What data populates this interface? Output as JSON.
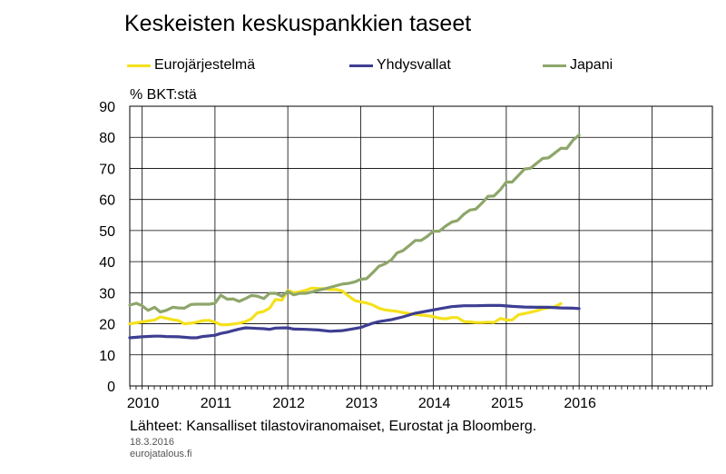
{
  "chart_data": {
    "type": "line",
    "title": "Keskeisten keskuspankkien taseet",
    "ylabel": "% BKT:stä",
    "xlabel": "",
    "ylim": [
      0,
      90
    ],
    "yticks": [
      0,
      10,
      20,
      30,
      40,
      50,
      60,
      70,
      80,
      90
    ],
    "xlim": [
      2009.83,
      2017.83
    ],
    "xticks": [
      {
        "label": "2010",
        "x": 2010.0
      },
      {
        "label": "2011",
        "x": 2011.0
      },
      {
        "label": "2012",
        "x": 2012.0
      },
      {
        "label": "2013",
        "x": 2013.0
      },
      {
        "label": "2014",
        "x": 2014.0
      },
      {
        "label": "2015",
        "x": 2015.0
      },
      {
        "label": "2016",
        "x": 2016.0
      }
    ],
    "grid": true,
    "legend_position": "top",
    "series": [
      {
        "name": "Eurojärjestelmä",
        "color": "#f5e11b",
        "points": [
          [
            2009.83,
            20.0
          ],
          [
            2009.92,
            20.3
          ],
          [
            2010.0,
            20.6
          ],
          [
            2010.08,
            20.9
          ],
          [
            2010.17,
            21.2
          ],
          [
            2010.25,
            22.2
          ],
          [
            2010.33,
            21.8
          ],
          [
            2010.42,
            21.3
          ],
          [
            2010.5,
            21.0
          ],
          [
            2010.58,
            20.0
          ],
          [
            2010.67,
            20.2
          ],
          [
            2010.75,
            20.5
          ],
          [
            2010.83,
            21.0
          ],
          [
            2010.92,
            21.1
          ],
          [
            2011.0,
            20.5
          ],
          [
            2011.08,
            19.7
          ],
          [
            2011.17,
            19.7
          ],
          [
            2011.25,
            19.9
          ],
          [
            2011.33,
            20.2
          ],
          [
            2011.42,
            20.7
          ],
          [
            2011.5,
            21.6
          ],
          [
            2011.58,
            23.5
          ],
          [
            2011.67,
            24.0
          ],
          [
            2011.75,
            25.0
          ],
          [
            2011.83,
            27.8
          ],
          [
            2011.92,
            27.6
          ],
          [
            2012.0,
            30.7
          ],
          [
            2012.08,
            30.0
          ],
          [
            2012.17,
            30.3
          ],
          [
            2012.25,
            30.8
          ],
          [
            2012.33,
            31.5
          ],
          [
            2012.42,
            31.3
          ],
          [
            2012.5,
            31.3
          ],
          [
            2012.58,
            31.0
          ],
          [
            2012.67,
            31.0
          ],
          [
            2012.75,
            30.5
          ],
          [
            2012.83,
            29.0
          ],
          [
            2012.92,
            27.5
          ],
          [
            2013.0,
            27.0
          ],
          [
            2013.08,
            26.7
          ],
          [
            2013.17,
            26.0
          ],
          [
            2013.25,
            25.0
          ],
          [
            2013.33,
            24.5
          ],
          [
            2013.42,
            24.2
          ],
          [
            2013.5,
            24.0
          ],
          [
            2013.58,
            23.6
          ],
          [
            2013.67,
            23.3
          ],
          [
            2013.75,
            23.0
          ],
          [
            2013.83,
            22.8
          ],
          [
            2013.92,
            22.6
          ],
          [
            2014.0,
            22.3
          ],
          [
            2014.08,
            21.8
          ],
          [
            2014.17,
            21.6
          ],
          [
            2014.25,
            22.0
          ],
          [
            2014.33,
            22.0
          ],
          [
            2014.42,
            20.7
          ],
          [
            2014.5,
            20.6
          ],
          [
            2014.58,
            20.4
          ],
          [
            2014.67,
            20.4
          ],
          [
            2014.75,
            20.5
          ],
          [
            2014.83,
            20.4
          ],
          [
            2014.92,
            21.7
          ],
          [
            2015.0,
            21.2
          ],
          [
            2015.08,
            21.2
          ],
          [
            2015.17,
            22.9
          ],
          [
            2015.25,
            23.3
          ],
          [
            2015.33,
            23.7
          ],
          [
            2015.42,
            24.2
          ],
          [
            2015.5,
            24.8
          ],
          [
            2015.58,
            25.1
          ],
          [
            2015.67,
            25.5
          ],
          [
            2015.75,
            26.5
          ]
        ]
      },
      {
        "name": "Yhdysvallat",
        "color": "#3e3e92",
        "points": [
          [
            2009.83,
            15.5
          ],
          [
            2010.0,
            15.8
          ],
          [
            2010.17,
            16.0
          ],
          [
            2010.25,
            16.0
          ],
          [
            2010.33,
            15.9
          ],
          [
            2010.5,
            15.8
          ],
          [
            2010.67,
            15.5
          ],
          [
            2010.75,
            15.5
          ],
          [
            2010.83,
            15.9
          ],
          [
            2011.0,
            16.3
          ],
          [
            2011.08,
            16.9
          ],
          [
            2011.17,
            17.3
          ],
          [
            2011.25,
            17.8
          ],
          [
            2011.33,
            18.3
          ],
          [
            2011.42,
            18.7
          ],
          [
            2011.5,
            18.6
          ],
          [
            2011.58,
            18.5
          ],
          [
            2011.67,
            18.4
          ],
          [
            2011.75,
            18.2
          ],
          [
            2011.83,
            18.6
          ],
          [
            2012.0,
            18.7
          ],
          [
            2012.08,
            18.3
          ],
          [
            2012.25,
            18.2
          ],
          [
            2012.42,
            18.0
          ],
          [
            2012.58,
            17.6
          ],
          [
            2012.75,
            17.8
          ],
          [
            2012.83,
            18.1
          ],
          [
            2013.0,
            18.8
          ],
          [
            2013.08,
            19.5
          ],
          [
            2013.17,
            20.2
          ],
          [
            2013.25,
            20.7
          ],
          [
            2013.42,
            21.3
          ],
          [
            2013.58,
            22.2
          ],
          [
            2013.75,
            23.4
          ],
          [
            2013.92,
            24.1
          ],
          [
            2014.08,
            24.8
          ],
          [
            2014.25,
            25.5
          ],
          [
            2014.42,
            25.8
          ],
          [
            2014.58,
            25.8
          ],
          [
            2014.75,
            25.9
          ],
          [
            2014.92,
            25.9
          ],
          [
            2015.08,
            25.6
          ],
          [
            2015.25,
            25.4
          ],
          [
            2015.42,
            25.3
          ],
          [
            2015.58,
            25.3
          ],
          [
            2015.75,
            25.1
          ],
          [
            2015.92,
            25.0
          ],
          [
            2016.0,
            24.9
          ]
        ]
      },
      {
        "name": "Japani",
        "color": "#8ea66a",
        "points": [
          [
            2009.83,
            26.0
          ],
          [
            2009.92,
            26.6
          ],
          [
            2010.0,
            25.8
          ],
          [
            2010.08,
            24.3
          ],
          [
            2010.17,
            25.3
          ],
          [
            2010.25,
            23.8
          ],
          [
            2010.33,
            24.3
          ],
          [
            2010.42,
            25.3
          ],
          [
            2010.5,
            25.1
          ],
          [
            2010.58,
            25.0
          ],
          [
            2010.67,
            26.2
          ],
          [
            2010.75,
            26.3
          ],
          [
            2010.83,
            26.3
          ],
          [
            2010.92,
            26.3
          ],
          [
            2011.0,
            26.6
          ],
          [
            2011.08,
            29.2
          ],
          [
            2011.17,
            27.9
          ],
          [
            2011.25,
            28.0
          ],
          [
            2011.33,
            27.2
          ],
          [
            2011.42,
            28.1
          ],
          [
            2011.5,
            29.1
          ],
          [
            2011.58,
            28.9
          ],
          [
            2011.67,
            28.1
          ],
          [
            2011.75,
            29.8
          ],
          [
            2011.83,
            29.8
          ],
          [
            2011.92,
            28.9
          ],
          [
            2012.0,
            30.4
          ],
          [
            2012.08,
            29.3
          ],
          [
            2012.17,
            29.8
          ],
          [
            2012.25,
            29.8
          ],
          [
            2012.33,
            30.2
          ],
          [
            2012.42,
            30.8
          ],
          [
            2012.5,
            31.2
          ],
          [
            2012.58,
            31.7
          ],
          [
            2012.67,
            32.3
          ],
          [
            2012.75,
            32.8
          ],
          [
            2012.83,
            33.0
          ],
          [
            2012.92,
            33.5
          ],
          [
            2013.0,
            34.3
          ],
          [
            2013.08,
            34.5
          ],
          [
            2013.17,
            36.5
          ],
          [
            2013.25,
            38.5
          ],
          [
            2013.33,
            39.2
          ],
          [
            2013.42,
            40.5
          ],
          [
            2013.5,
            42.8
          ],
          [
            2013.58,
            43.5
          ],
          [
            2013.67,
            45.2
          ],
          [
            2013.75,
            46.8
          ],
          [
            2013.83,
            46.8
          ],
          [
            2013.92,
            48.2
          ],
          [
            2014.0,
            49.8
          ],
          [
            2014.08,
            49.8
          ],
          [
            2014.17,
            51.5
          ],
          [
            2014.25,
            52.7
          ],
          [
            2014.33,
            53.2
          ],
          [
            2014.42,
            55.3
          ],
          [
            2014.5,
            56.6
          ],
          [
            2014.58,
            56.9
          ],
          [
            2014.67,
            58.9
          ],
          [
            2014.75,
            61.0
          ],
          [
            2014.83,
            61.1
          ],
          [
            2014.92,
            63.2
          ],
          [
            2015.0,
            65.6
          ],
          [
            2015.08,
            65.6
          ],
          [
            2015.17,
            67.8
          ],
          [
            2015.25,
            69.8
          ],
          [
            2015.33,
            70.0
          ],
          [
            2015.42,
            71.7
          ],
          [
            2015.5,
            73.2
          ],
          [
            2015.58,
            73.4
          ],
          [
            2015.67,
            75.0
          ],
          [
            2015.75,
            76.5
          ],
          [
            2015.83,
            76.4
          ],
          [
            2015.92,
            79.2
          ],
          [
            2016.0,
            80.7
          ]
        ]
      }
    ]
  },
  "source": "Lähteet: Kansalliset tilastoviranomaiset, Eurostat ja Bloomberg.",
  "date": "18.3.2016",
  "site": "eurojatalous.fi"
}
